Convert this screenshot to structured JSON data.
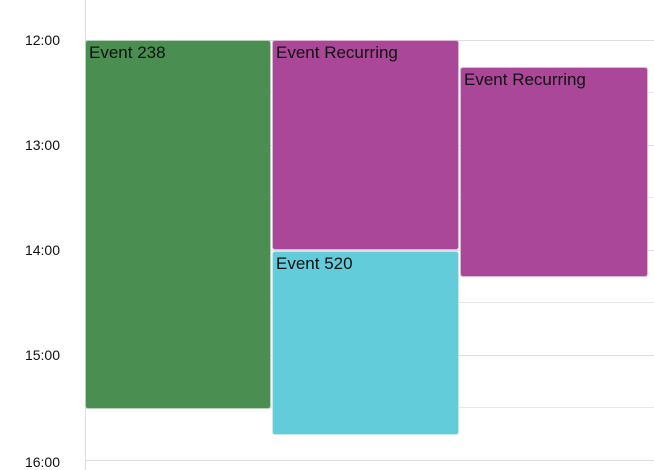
{
  "times": [
    "12:00",
    "13:00",
    "14:00",
    "15:00",
    "16:00"
  ],
  "events": [
    {
      "title": "Event 238",
      "color": "#4a8e52"
    },
    {
      "title": "Event Recurring",
      "color": "#aa4798"
    },
    {
      "title": "Event 520",
      "color": "#62ccda"
    },
    {
      "title": "Event Recurring",
      "color": "#aa4798"
    }
  ]
}
